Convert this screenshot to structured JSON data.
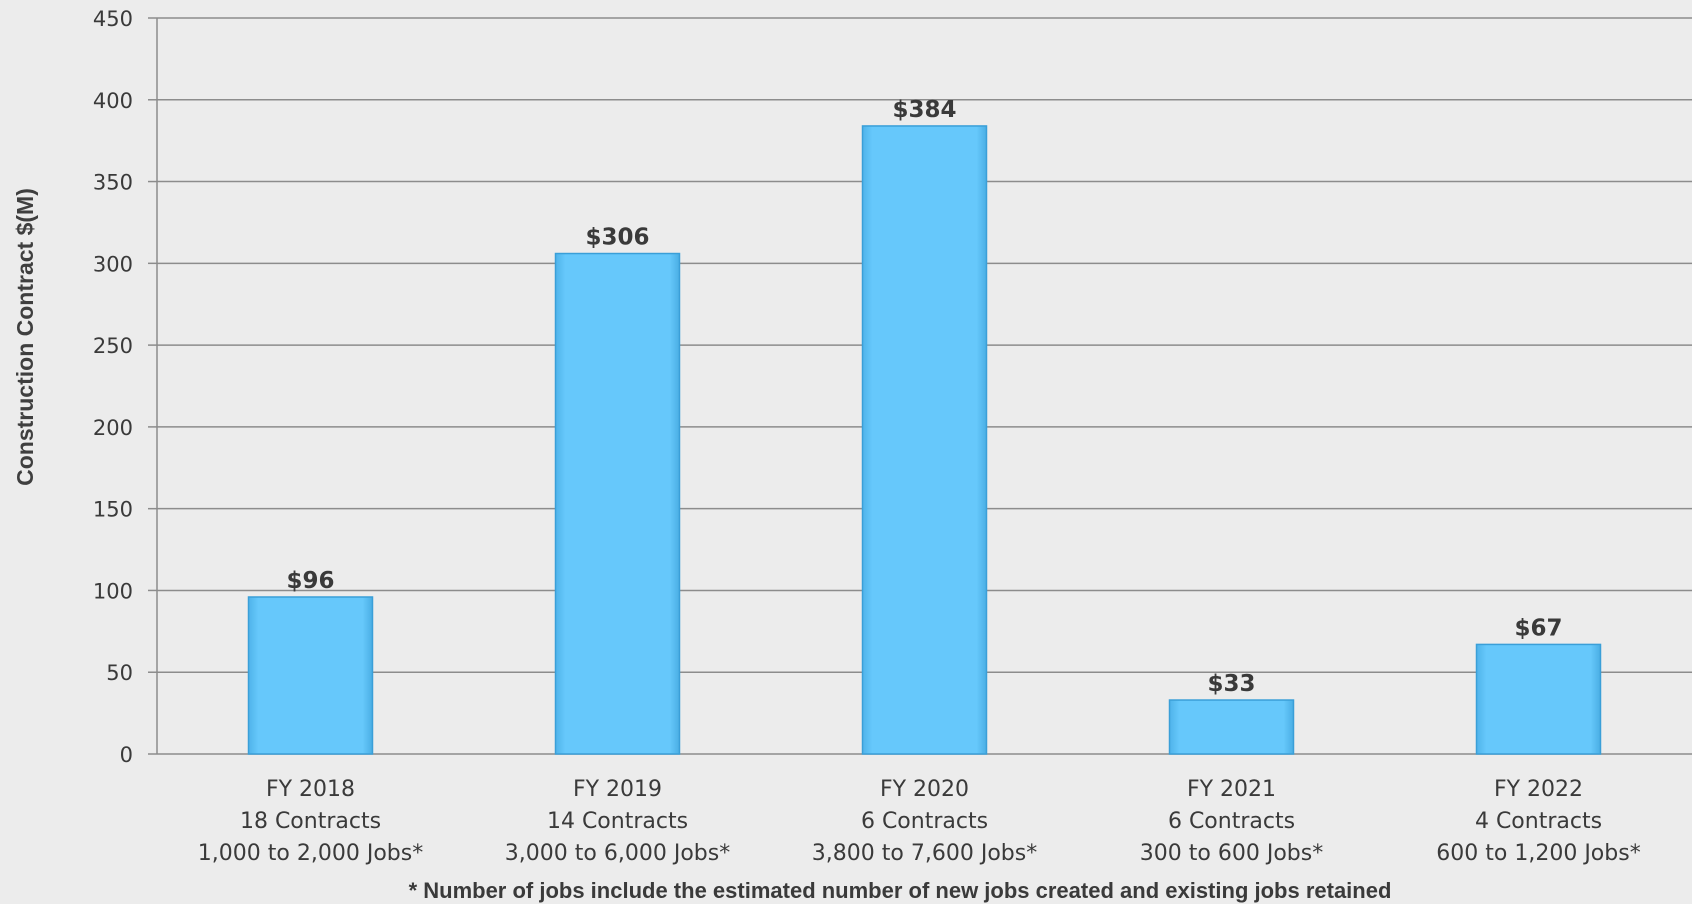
{
  "chart_data": {
    "type": "bar",
    "categories": [
      [
        "FY 2018",
        "18 Contracts",
        "1,000 to 2,000 Jobs*"
      ],
      [
        "FY 2019",
        "14 Contracts",
        "3,000 to 6,000 Jobs*"
      ],
      [
        "FY 2020",
        "6 Contracts",
        "3,800 to 7,600 Jobs*"
      ],
      [
        "FY 2021",
        "6 Contracts",
        "300 to 600 Jobs*"
      ],
      [
        "FY 2022",
        "4 Contracts",
        "600 to 1,200 Jobs*"
      ]
    ],
    "values": [
      96,
      306,
      384,
      33,
      67
    ],
    "data_labels": [
      "$96",
      "$306",
      "$384",
      "$33",
      "$67"
    ],
    "ylabel": "Construction Contract $(M)",
    "ylim": [
      0,
      450
    ],
    "yticks": [
      0,
      50,
      100,
      150,
      200,
      250,
      300,
      350,
      400,
      450
    ],
    "grid": true,
    "footnote": "* Number of  jobs include the estimated number of new jobs created and existing jobs retained",
    "colors": {
      "bar": "#66c8fb",
      "bar_edge": "#3a9fd8",
      "grid": "#8c8c8c",
      "background": "#ececec"
    }
  }
}
